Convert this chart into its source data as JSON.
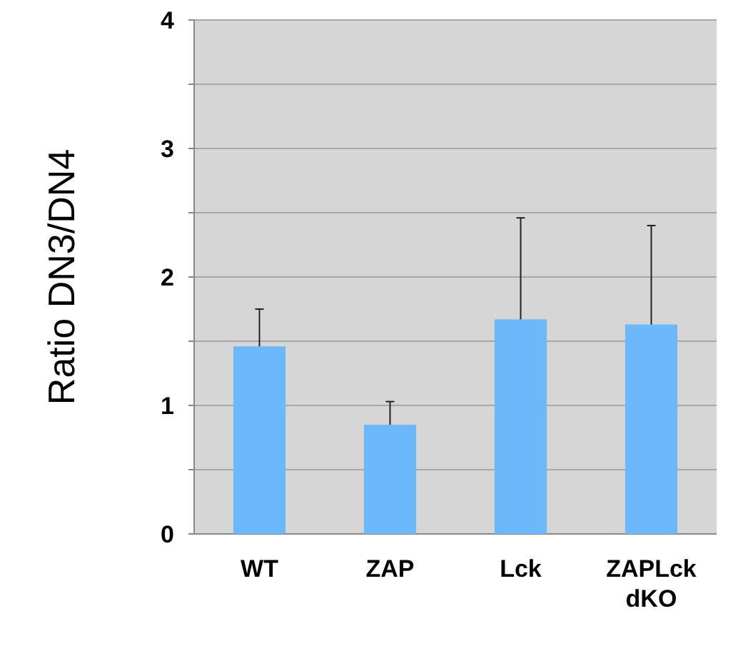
{
  "chart_data": {
    "type": "bar",
    "ylabel": "Ratio DN3/DN4",
    "categories": [
      "WT",
      "ZAP",
      "Lck",
      "ZAPLck\ndKO"
    ],
    "values": [
      1.46,
      0.85,
      1.67,
      1.63
    ],
    "color": "#6cb8fa",
    "errors": [
      [
        1.46,
        1.75
      ],
      [
        0.85,
        1.03
      ],
      [
        1.67,
        2.46
      ],
      [
        1.63,
        2.4
      ]
    ],
    "ylim": [
      0,
      4
    ],
    "yticks": [
      0,
      {
        "value": 0.5,
        "label": null
      },
      1,
      {
        "value": 1.5,
        "label": null
      },
      2,
      {
        "value": 2.5,
        "label": null
      },
      3,
      {
        "value": 3.5,
        "label": null
      },
      4
    ],
    "grid": true
  }
}
